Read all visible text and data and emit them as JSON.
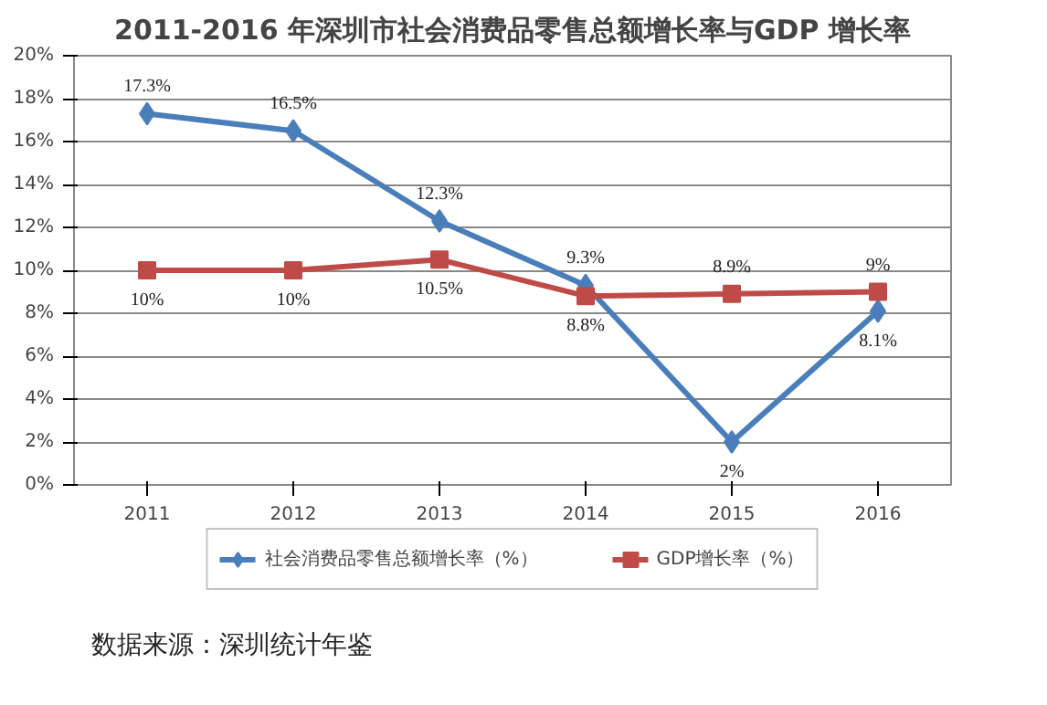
{
  "chart_data": {
    "type": "line",
    "title": "2011-2016 年深圳市社会消费品零售总额增长率与GDP 增长率",
    "categories": [
      "2011",
      "2012",
      "2013",
      "2014",
      "2015",
      "2016"
    ],
    "series": [
      {
        "name": "社会消费品零售总额增长率（%）",
        "color": "#4a7ebb",
        "marker": "diamond",
        "values": [
          17.3,
          16.5,
          12.3,
          9.3,
          2,
          8.1
        ],
        "value_labels": [
          "17.3%",
          "16.5%",
          "12.3%",
          "9.3%",
          "2%",
          "8.1%"
        ]
      },
      {
        "name": "GDP增长率（%）",
        "color": "#be4b48",
        "marker": "square",
        "values": [
          10,
          10,
          10.5,
          8.8,
          8.9,
          9
        ],
        "value_labels": [
          "10%",
          "10%",
          "10.5%",
          "8.8%",
          "8.9%",
          "9%"
        ]
      }
    ],
    "ylim": [
      0,
      20
    ],
    "yticks": [
      {
        "value": 0,
        "label": "0%"
      },
      {
        "value": 2,
        "label": "2%"
      },
      {
        "value": 4,
        "label": "4%"
      },
      {
        "value": 6,
        "label": "6%"
      },
      {
        "value": 8,
        "label": "8%"
      },
      {
        "value": 10,
        "label": "10%"
      },
      {
        "value": 12,
        "label": "12%"
      },
      {
        "value": 14,
        "label": "14%"
      },
      {
        "value": 16,
        "label": "16%"
      },
      {
        "value": 18,
        "label": "18%"
      },
      {
        "value": 20,
        "label": "20%"
      }
    ],
    "grid": "y",
    "legend": "bottom",
    "line_style": "solid",
    "annotations": [
      "数据来源：深圳统计年鉴"
    ]
  }
}
